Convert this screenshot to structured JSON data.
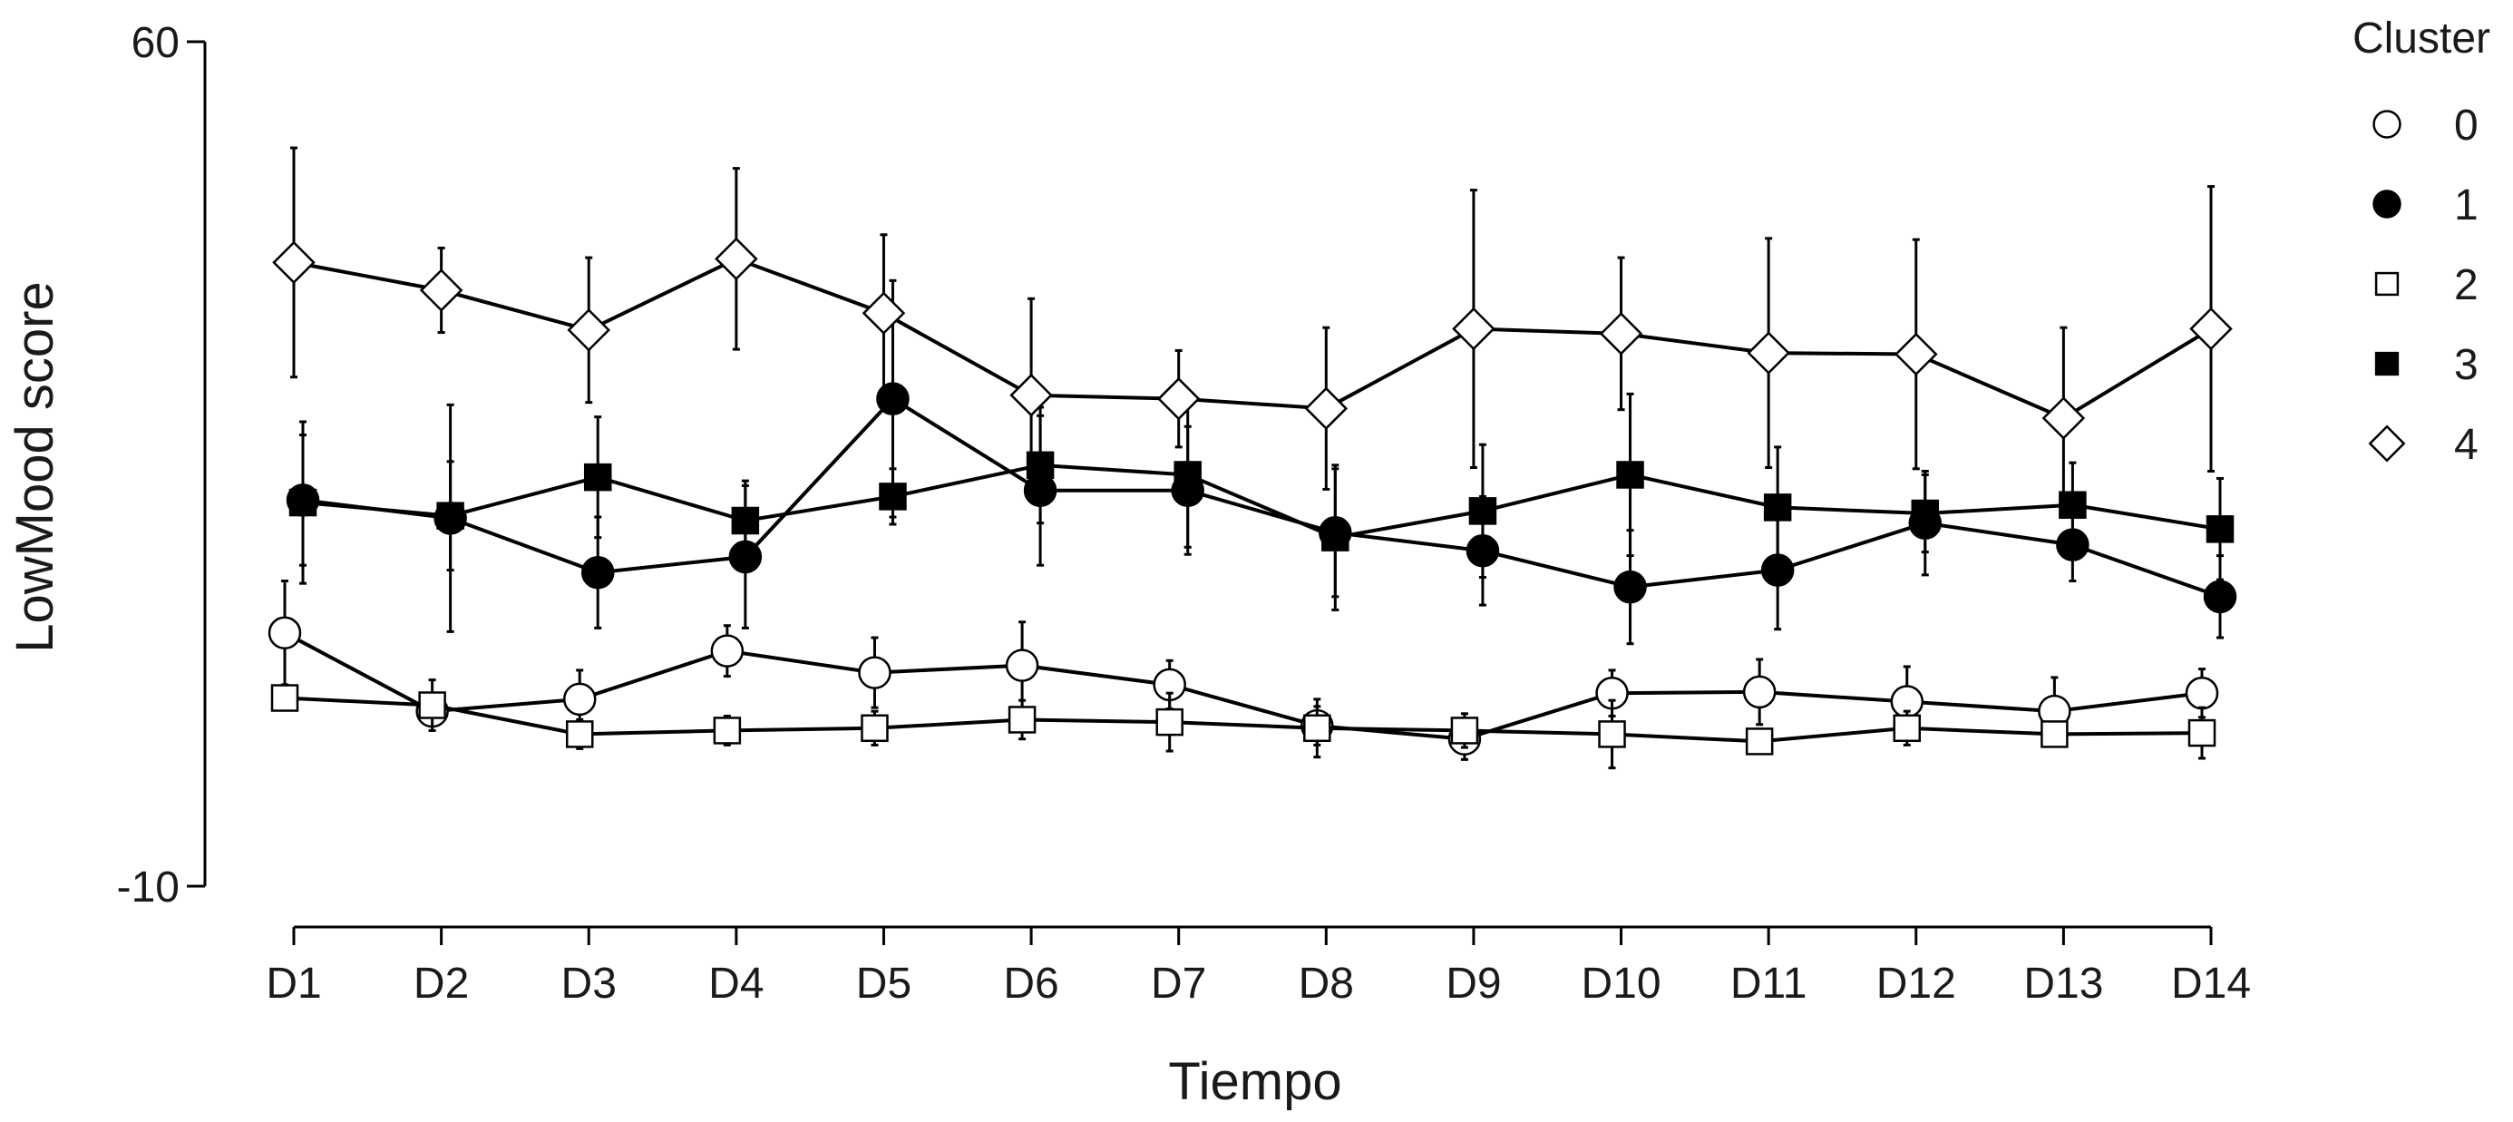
{
  "chart_data": {
    "type": "line",
    "xlabel": "Tiempo",
    "ylabel": "LowMood score",
    "categories": [
      "D1",
      "D2",
      "D3",
      "D4",
      "D5",
      "D6",
      "D7",
      "D8",
      "D9",
      "D10",
      "D11",
      "D12",
      "D13",
      "D14"
    ],
    "ylim": [
      -10,
      60
    ],
    "yticks": [
      -10,
      60
    ],
    "grid": false,
    "legend": {
      "title": "Cluster",
      "position": "right"
    },
    "series": [
      {
        "name": "0",
        "marker": "circle",
        "fill": "#ffffff",
        "values": [
          11.0,
          4.5,
          5.5,
          9.5,
          7.7,
          8.3,
          6.7,
          3.3,
          2.2,
          6.0,
          6.1,
          5.3,
          4.5,
          6.0
        ],
        "err": [
          4.3,
          1.2,
          2.4,
          2.1,
          2.9,
          3.6,
          2.0,
          1.6,
          1.7,
          1.9,
          2.7,
          2.9,
          2.8,
          2.0
        ]
      },
      {
        "name": "1",
        "marker": "circle",
        "fill": "#000000",
        "values": [
          22.0,
          20.5,
          16.0,
          17.3,
          30.4,
          22.8,
          22.8,
          19.3,
          17.8,
          14.8,
          16.2,
          20.1,
          18.3,
          14.0
        ],
        "err": [
          5.4,
          9.4,
          4.6,
          5.9,
          9.8,
          6.2,
          5.3,
          5.3,
          4.5,
          4.7,
          4.9,
          4.3,
          3.0,
          3.4
        ]
      },
      {
        "name": "2",
        "marker": "square",
        "fill": "#ffffff",
        "values": [
          5.6,
          5.0,
          2.6,
          2.9,
          3.1,
          3.8,
          3.6,
          3.1,
          2.9,
          2.6,
          2.0,
          3.1,
          2.6,
          2.7
        ],
        "err": [
          0.8,
          2.1,
          1.2,
          1.2,
          1.4,
          1.6,
          2.4,
          2.4,
          1.4,
          2.8,
          1.0,
          1.4,
          0.8,
          2.1
        ]
      },
      {
        "name": "3",
        "marker": "square",
        "fill": "#000000",
        "values": [
          21.8,
          20.7,
          23.9,
          20.3,
          22.3,
          24.9,
          24.1,
          18.9,
          21.1,
          24.1,
          21.4,
          20.9,
          21.6,
          19.6
        ],
        "err": [
          6.7,
          4.5,
          5.0,
          3.3,
          2.3,
          4.8,
          6.0,
          6.0,
          5.5,
          6.7,
          5.0,
          3.2,
          3.5,
          4.2
        ]
      },
      {
        "name": "4",
        "marker": "diamond",
        "fill": "#ffffff",
        "values": [
          41.7,
          39.4,
          36.1,
          42.0,
          37.5,
          30.7,
          30.4,
          29.6,
          36.2,
          35.8,
          34.2,
          34.1,
          28.8,
          36.2
        ],
        "err": [
          9.5,
          3.5,
          6.0,
          7.5,
          6.5,
          8.0,
          4.0,
          6.7,
          11.5,
          6.3,
          9.5,
          9.5,
          7.5,
          11.8
        ]
      }
    ]
  }
}
